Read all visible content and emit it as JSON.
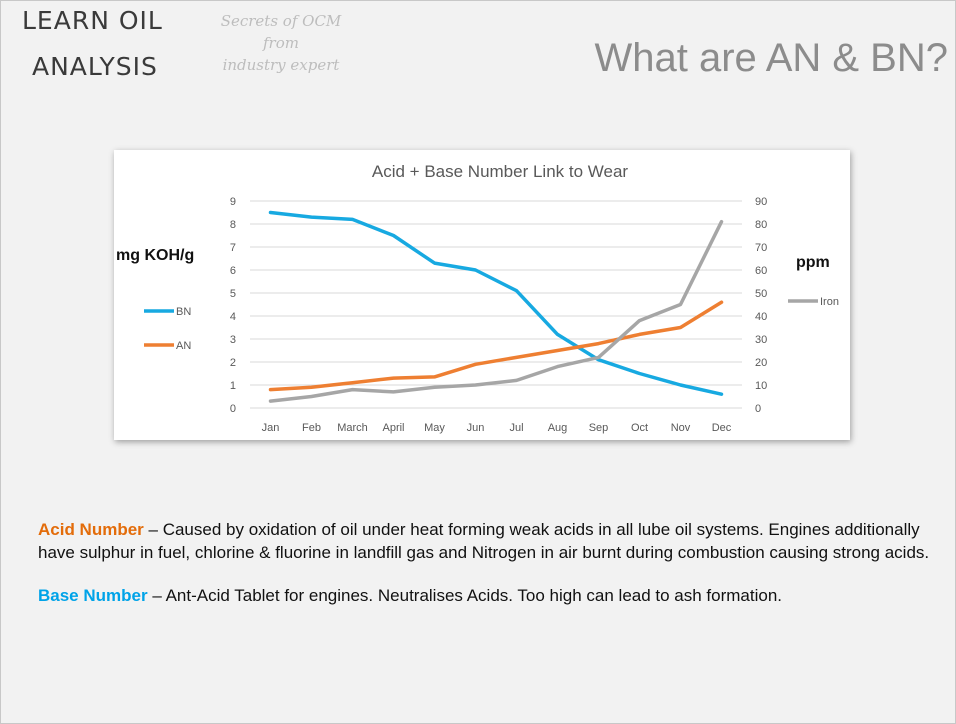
{
  "logo": {
    "line1": "LEARN OIL",
    "line2": "ANALYSIS",
    "tagline": [
      "Secrets of OCM",
      "from",
      "industry expert"
    ]
  },
  "title": "What are AN & BN?",
  "chart_data": {
    "type": "line",
    "title": "Acid + Base Number Link to Wear",
    "categories": [
      "Jan",
      "Feb",
      "March",
      "April",
      "May",
      "Jun",
      "Jul",
      "Aug",
      "Sep",
      "Oct",
      "Nov",
      "Dec"
    ],
    "left_axis": {
      "label": "mg KOH/g",
      "min": 0,
      "max": 9,
      "ticks": [
        0,
        1,
        2,
        3,
        4,
        5,
        6,
        7,
        8,
        9
      ]
    },
    "right_axis": {
      "label": "ppm",
      "min": 0,
      "max": 90,
      "ticks": [
        0,
        10,
        20,
        30,
        40,
        50,
        60,
        70,
        80,
        90
      ]
    },
    "grid": true,
    "series": [
      {
        "name": "BN",
        "axis": "left",
        "color": "#17a9e1",
        "values": [
          8.5,
          8.3,
          8.2,
          7.5,
          6.3,
          6.0,
          5.1,
          3.2,
          2.1,
          1.5,
          1.0,
          0.6
        ]
      },
      {
        "name": "AN",
        "axis": "left",
        "color": "#ee7f32",
        "values": [
          0.8,
          0.9,
          1.1,
          1.3,
          1.35,
          1.9,
          2.2,
          2.5,
          2.8,
          3.2,
          3.5,
          4.6
        ]
      },
      {
        "name": "Iron",
        "axis": "right",
        "color": "#a6a6a6",
        "values": [
          3,
          5,
          8,
          7,
          9,
          10,
          12,
          18,
          22,
          38,
          45,
          81
        ]
      }
    ]
  },
  "text": {
    "an_term": "Acid Number",
    "an_body": " – Caused by oxidation of oil under heat forming weak acids in all lube oil systems. Engines additionally have sulphur in fuel, chlorine & fluorine in landfill gas and Nitrogen in air burnt during combustion causing strong acids.",
    "bn_term": "Base Number",
    "bn_body": " – Ant-Acid Tablet for engines. Neutralises Acids. Too high can lead to ash formation."
  }
}
